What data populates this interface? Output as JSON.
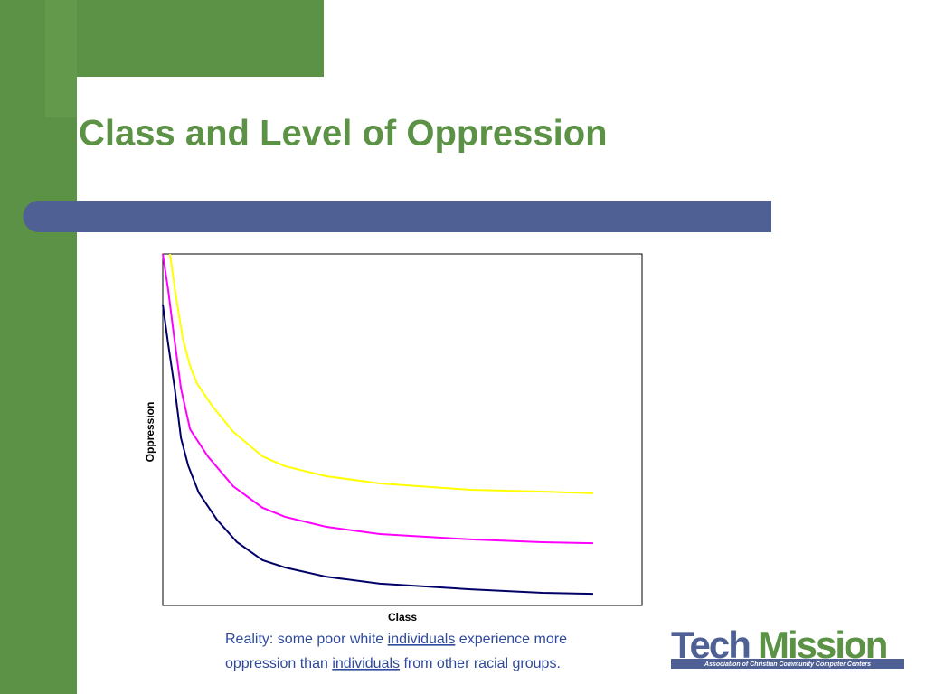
{
  "chart_data": {
    "type": "line",
    "title": "Class and Level of Oppression",
    "x_label": "Class",
    "y_label": "Oppression",
    "xlim": [
      0,
      100
    ],
    "ylim": [
      0,
      100
    ],
    "grid": false,
    "series": [
      {
        "color": "#ffff00",
        "x": [
          1.5,
          2.8,
          4.2,
          5.7,
          7.2,
          10.4,
          14.7,
          20.8,
          25.5,
          34,
          45.3,
          64.2,
          79.2,
          89.8
        ],
        "y": [
          100,
          87.4,
          75.8,
          68.1,
          63,
          56.6,
          49.4,
          42.4,
          39.6,
          36.8,
          34.7,
          32.9,
          32.4,
          31.9
        ]
      },
      {
        "color": "#ff00ff",
        "x": [
          0,
          1.1,
          2.3,
          3.8,
          5.7,
          9.4,
          14.7,
          20.8,
          25.5,
          34,
          45.3,
          64.2,
          79.2,
          89.8
        ],
        "y": [
          100,
          90,
          77.1,
          61.7,
          50.1,
          42.4,
          33.9,
          27.8,
          25.2,
          22.4,
          20.3,
          18.8,
          18,
          17.7
        ]
      },
      {
        "color": "#000066",
        "x": [
          0,
          1.1,
          2.5,
          3.8,
          5.3,
          7.5,
          11.3,
          15.5,
          20.8,
          25.5,
          34,
          45.3,
          64.2,
          79.2,
          89.8
        ],
        "y": [
          85.6,
          74.6,
          61.7,
          47.6,
          39.8,
          32.1,
          24.4,
          18,
          12.9,
          10.8,
          8.2,
          6.2,
          4.6,
          3.6,
          3.3
        ]
      }
    ]
  },
  "caption": {
    "lines": [
      [
        {
          "text": "Reality: some poor white "
        },
        {
          "text": "individuals",
          "underline": true
        },
        {
          "text": " experience more"
        }
      ],
      [
        {
          "text": "oppression than "
        },
        {
          "text": "individuals",
          "underline": true
        },
        {
          "text": " from other racial groups."
        }
      ]
    ]
  },
  "logo": {
    "word1": "Tech",
    "word2": "Mission",
    "tagline": "Association of Christian Community Computer Centers"
  }
}
